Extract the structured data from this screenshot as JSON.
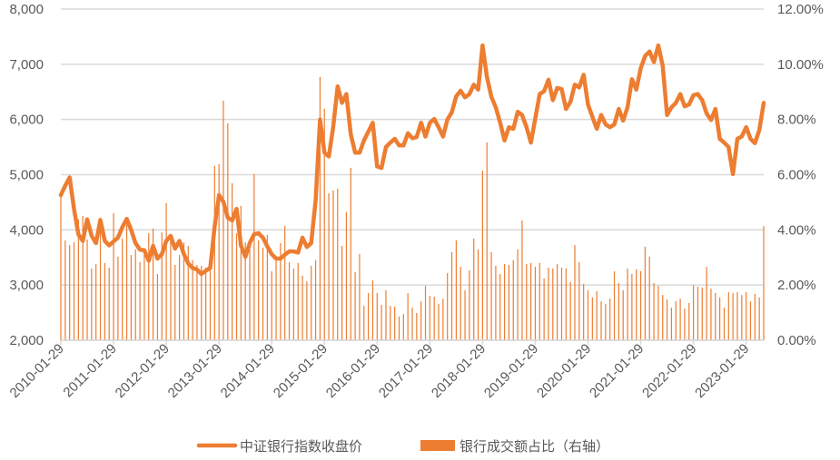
{
  "chart_data": {
    "type": "bar+line",
    "title": "",
    "colors": {
      "line": "#ED7D31",
      "bar": "#ED7D31",
      "grid": "#D9D9D9",
      "text": "#595959"
    },
    "grid": true,
    "legend_placement": "bottom",
    "y_left": {
      "min": 2000,
      "max": 8000,
      "ticks": [
        "2,000",
        "3,000",
        "4,000",
        "5,000",
        "6,000",
        "7,000",
        "8,000"
      ]
    },
    "y_right": {
      "min": 0,
      "max": 12,
      "unit": "%",
      "ticks": [
        "0.00%",
        "2.00%",
        "4.00%",
        "6.00%",
        "8.00%",
        "10.00%",
        "12.00%"
      ]
    },
    "x_tick_labels": [
      "2010-01-29",
      "2011-01-29",
      "2012-01-29",
      "2013-01-29",
      "2014-01-29",
      "2015-01-29",
      "2016-01-29",
      "2017-01-29",
      "2018-01-29",
      "2019-01-29",
      "2020-01-29",
      "2021-01-29",
      "2022-01-29",
      "2023-01-29"
    ],
    "dates": [
      "2010-01",
      "2010-02",
      "2010-03",
      "2010-04",
      "2010-05",
      "2010-06",
      "2010-07",
      "2010-08",
      "2010-09",
      "2010-10",
      "2010-11",
      "2010-12",
      "2011-01",
      "2011-02",
      "2011-03",
      "2011-04",
      "2011-05",
      "2011-06",
      "2011-07",
      "2011-08",
      "2011-09",
      "2011-10",
      "2011-11",
      "2011-12",
      "2012-01",
      "2012-02",
      "2012-03",
      "2012-04",
      "2012-05",
      "2012-06",
      "2012-07",
      "2012-08",
      "2012-09",
      "2012-10",
      "2012-11",
      "2012-12",
      "2013-01",
      "2013-02",
      "2013-03",
      "2013-04",
      "2013-05",
      "2013-06",
      "2013-07",
      "2013-08",
      "2013-09",
      "2013-10",
      "2013-11",
      "2013-12",
      "2014-01",
      "2014-02",
      "2014-03",
      "2014-04",
      "2014-05",
      "2014-06",
      "2014-07",
      "2014-08",
      "2014-09",
      "2014-10",
      "2014-11",
      "2014-12",
      "2015-01",
      "2015-02",
      "2015-03",
      "2015-04",
      "2015-05",
      "2015-06",
      "2015-07",
      "2015-08",
      "2015-09",
      "2015-10",
      "2015-11",
      "2015-12",
      "2016-01",
      "2016-02",
      "2016-03",
      "2016-04",
      "2016-05",
      "2016-06",
      "2016-07",
      "2016-08",
      "2016-09",
      "2016-10",
      "2016-11",
      "2016-12",
      "2017-01",
      "2017-02",
      "2017-03",
      "2017-04",
      "2017-05",
      "2017-06",
      "2017-07",
      "2017-08",
      "2017-09",
      "2017-10",
      "2017-11",
      "2017-12",
      "2018-01",
      "2018-02",
      "2018-03",
      "2018-04",
      "2018-05",
      "2018-06",
      "2018-07",
      "2018-08",
      "2018-09",
      "2018-10",
      "2018-11",
      "2018-12",
      "2019-01",
      "2019-02",
      "2019-03",
      "2019-04",
      "2019-05",
      "2019-06",
      "2019-07",
      "2019-08",
      "2019-09",
      "2019-10",
      "2019-11",
      "2019-12",
      "2020-01",
      "2020-02",
      "2020-03",
      "2020-04",
      "2020-05",
      "2020-06",
      "2020-07",
      "2020-08",
      "2020-09",
      "2020-10",
      "2020-11",
      "2020-12",
      "2021-01",
      "2021-02",
      "2021-03",
      "2021-04",
      "2021-05",
      "2021-06",
      "2021-07",
      "2021-08",
      "2021-09",
      "2021-10",
      "2021-11",
      "2021-12",
      "2022-01",
      "2022-02",
      "2022-03",
      "2022-04",
      "2022-05",
      "2022-06",
      "2022-07",
      "2022-08",
      "2022-09",
      "2022-10",
      "2022-11",
      "2022-12",
      "2023-01",
      "2023-02",
      "2023-03",
      "2023-04",
      "2023-05"
    ],
    "series": [
      {
        "name": "中证银行指数收盘价",
        "type": "line",
        "axis": "left",
        "values": [
          4630,
          4800,
          4950,
          4380,
          3920,
          3800,
          4190,
          3890,
          3760,
          4180,
          3800,
          3720,
          3790,
          3860,
          4050,
          4200,
          4000,
          3760,
          3640,
          3630,
          3440,
          3710,
          3480,
          3560,
          3800,
          3890,
          3660,
          3800,
          3560,
          3390,
          3310,
          3280,
          3200,
          3260,
          3310,
          4050,
          4630,
          4510,
          4220,
          4170,
          4380,
          3720,
          3510,
          3760,
          3920,
          3940,
          3860,
          3700,
          3560,
          3480,
          3480,
          3550,
          3610,
          3610,
          3590,
          3860,
          3690,
          3760,
          4540,
          6000,
          5400,
          5330,
          5860,
          6600,
          6300,
          6460,
          5730,
          5400,
          5400,
          5620,
          5780,
          5940,
          5150,
          5120,
          5500,
          5580,
          5650,
          5530,
          5530,
          5750,
          5660,
          5680,
          5940,
          5690,
          5940,
          6010,
          5860,
          5690,
          6000,
          6130,
          6420,
          6520,
          6400,
          6460,
          6630,
          6540,
          7340,
          6770,
          6410,
          6220,
          5940,
          5620,
          5860,
          5830,
          6140,
          6080,
          5860,
          5580,
          6020,
          6460,
          6510,
          6720,
          6350,
          6570,
          6550,
          6190,
          6320,
          6630,
          6580,
          6810,
          6270,
          6050,
          5830,
          6080,
          5910,
          5860,
          5910,
          6190,
          5980,
          6220,
          6730,
          6540,
          6930,
          7150,
          7230,
          7040,
          7340,
          6980,
          6080,
          6220,
          6300,
          6460,
          6240,
          6270,
          6440,
          6460,
          6350,
          6110,
          5990,
          6190,
          5650,
          5580,
          5500,
          5010,
          5650,
          5690,
          5860,
          5650,
          5570,
          5810,
          6300
        ]
      },
      {
        "name": "银行成交额占比（右轴）",
        "type": "bar",
        "axis": "right",
        "values": [
          5.33,
          3.62,
          3.45,
          3.55,
          4.38,
          4.5,
          3.65,
          2.6,
          2.76,
          4.44,
          2.8,
          2.63,
          4.6,
          3.03,
          3.68,
          4.2,
          3.09,
          3.29,
          2.83,
          3.12,
          3.88,
          4.05,
          2.4,
          3.91,
          4.97,
          3.78,
          2.73,
          3.09,
          3.55,
          3.42,
          2.9,
          2.73,
          2.7,
          2.63,
          2.63,
          6.32,
          6.38,
          8.68,
          7.86,
          5.69,
          3.88,
          4.87,
          3.55,
          3.42,
          6.02,
          3.62,
          3.36,
          3.82,
          2.5,
          2.9,
          3.52,
          4.14,
          2.83,
          2.6,
          2.8,
          2.34,
          2.14,
          2.7,
          2.9,
          9.54,
          8.39,
          5.33,
          5.43,
          5.49,
          3.42,
          4.64,
          6.25,
          2.47,
          3.12,
          1.25,
          1.71,
          2.17,
          1.71,
          1.28,
          1.81,
          1.25,
          1.22,
          0.86,
          0.95,
          1.71,
          1.18,
          0.99,
          1.41,
          1.97,
          1.61,
          1.58,
          1.32,
          1.51,
          2.43,
          3.19,
          3.62,
          2.66,
          1.81,
          2.53,
          3.68,
          3.29,
          6.15,
          7.17,
          3.19,
          2.7,
          2.4,
          2.76,
          2.73,
          2.9,
          3.29,
          4.34,
          2.76,
          2.8,
          2.66,
          2.8,
          2.24,
          2.63,
          2.6,
          2.76,
          2.63,
          2.6,
          2.11,
          3.45,
          2.83,
          2.04,
          1.81,
          1.55,
          1.78,
          1.41,
          1.32,
          1.51,
          2.5,
          2.07,
          1.81,
          2.6,
          2.4,
          2.57,
          2.5,
          3.39,
          3.03,
          2.07,
          1.97,
          1.64,
          1.48,
          1.18,
          1.41,
          1.51,
          1.15,
          1.35,
          2.0,
          1.94,
          1.91,
          2.66,
          1.87,
          1.71,
          1.55,
          1.18,
          1.74,
          1.71,
          1.74,
          1.64,
          1.74,
          1.41,
          1.68,
          1.55,
          4.14
        ]
      }
    ]
  }
}
